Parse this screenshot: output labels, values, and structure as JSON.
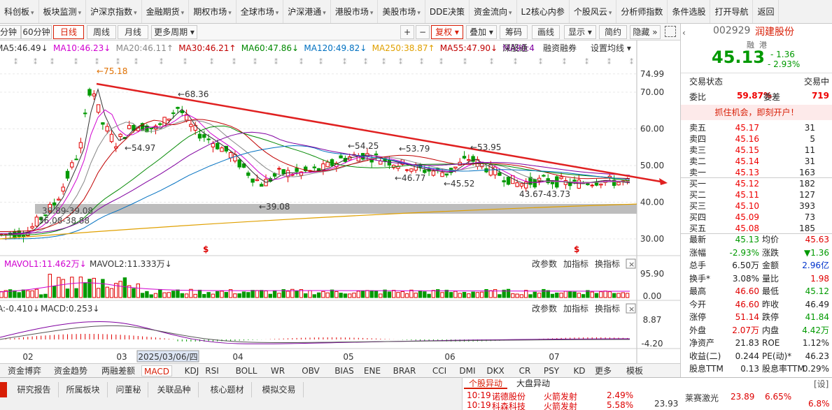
{
  "menu": [
    {
      "label": "科创板",
      "arrow": true
    },
    {
      "label": "板块监测",
      "arrow": true
    },
    {
      "label": "沪深京指数",
      "arrow": true
    },
    {
      "label": "金融期货",
      "arrow": true
    },
    {
      "label": "期权市场",
      "arrow": true
    },
    {
      "label": "全球市场",
      "arrow": true
    },
    {
      "label": "沪深港通",
      "arrow": true
    },
    {
      "label": "港股市场",
      "arrow": true
    },
    {
      "label": "美股市场",
      "arrow": true
    },
    {
      "label": "DDE决策",
      "arrow": false
    },
    {
      "label": "资金流向",
      "arrow": true
    },
    {
      "label": "L2核心内参",
      "arrow": false
    },
    {
      "label": "个股风云",
      "arrow": true
    },
    {
      "label": "分析师指数",
      "arrow": false
    },
    {
      "label": "条件选股",
      "arrow": false
    },
    {
      "label": "打开导航",
      "arrow": false
    },
    {
      "label": "返回",
      "arrow": false
    }
  ],
  "toolbar": {
    "periods": [
      "分钟",
      "60分钟",
      "日线",
      "周线",
      "月线"
    ],
    "active_period": "日线",
    "more_periods": "更多周期",
    "plus": "+",
    "minus": "−",
    "restore": "复权",
    "overlay": "叠加",
    "chips": "筹码",
    "draw": "画线",
    "display": "显示",
    "simple": "简约",
    "hide": "隐藏",
    "double_arrow": "»"
  },
  "ma_legend": [
    {
      "label": "MA5:46.49",
      "arrow": "↓",
      "color": "#333333"
    },
    {
      "label": "MA10:46.23",
      "arrow": "↓",
      "color": "#d000d0"
    },
    {
      "label": "MA20:46.11",
      "arrow": "↑",
      "color": "#888888"
    },
    {
      "label": "MA30:46.21",
      "arrow": "↑",
      "color": "#c00000"
    },
    {
      "label": "MA60:47.86",
      "arrow": "↓",
      "color": "#008800"
    },
    {
      "label": "MA120:49.82",
      "arrow": "↓",
      "color": "#0070c0"
    },
    {
      "label": "MA250:38.87",
      "arrow": "↑",
      "color": "#e0a000"
    },
    {
      "label": "MA55:47.90",
      "arrow": "↓",
      "color": "#c00000"
    },
    {
      "label": "MA90:4",
      "arrow": "",
      "color": "#8000a0"
    }
  ],
  "chart_buttons": {
    "shgt": "深股通",
    "margin": "融资融券",
    "set_ma": "设置均线"
  },
  "price_axis": [
    "74.99",
    "70.00",
    "60.00",
    "50.00",
    "40.00",
    "30.00"
  ],
  "annotations": {
    "high": "←75.18",
    "peak2": "←68.36",
    "low1": "←54.97",
    "mid1": "←54.25",
    "mid2": "←53.79",
    "mid3": "←53.95",
    "low2": "←46.77",
    "low3": "←45.52",
    "low4": "43.67-43.73",
    "low5": "←39.08",
    "band1": "38.89-39.08",
    "band2": "36.08-38.88",
    "s1": "$",
    "s2": "$"
  },
  "vol_panel": {
    "legend1": "MAVOL1:11.462万",
    "legend1_arrow": "↓",
    "legend2": "MAVOL2:11.333万",
    "legend2_arrow": "↓",
    "change": "改参数",
    "add": "加指标",
    "swap": "换指标",
    "close": "×",
    "axis_top": "95.90",
    "axis_bottom": "0.00"
  },
  "macd_panel": {
    "legend0": "A:-0.410",
    "legend0_arrow": "↓",
    "legend1": "MACD:0.253",
    "legend1_arrow": "↓",
    "change": "改参数",
    "add": "加指标",
    "swap": "换指标",
    "close": "×",
    "axis_top": "8.87",
    "axis_bottom": "-4.20"
  },
  "time_axis": [
    "02",
    "03",
    "2025/03/06/四",
    "04",
    "05",
    "06",
    "07"
  ],
  "ind_tabs": [
    "资金博弈",
    "资金趋势",
    "两融差额",
    "MACD",
    "KDJ",
    "RSI",
    "BOLL",
    "WR",
    "OBV",
    "BIAS",
    "ENE",
    "BRAR",
    "CCI",
    "DMI",
    "DKX",
    "CR",
    "PSY",
    "KD",
    "更多",
    "模板"
  ],
  "active_ind": "MACD",
  "bottom_tabs": [
    "研究报告",
    "所属板块",
    "问董秘",
    "关联品种",
    "核心题材",
    "模拟交易"
  ],
  "alerts": {
    "tab1": "个股异动",
    "tab2": "大盘异动",
    "settings": "[设]",
    "rows": [
      {
        "time": "10:19",
        "name": "诺德股份",
        "event": "火箭发射",
        "pct": "2.49%"
      },
      {
        "time": "10:19",
        "name": "科森科技",
        "event": "火箭发射",
        "pct": "5.58%"
      }
    ],
    "extra1": "23.93",
    "extra2": "莱赛激光",
    "extra3": "23.89",
    "extra4": "6.65%",
    "extra5": "6.8%"
  },
  "stock": {
    "code": "002929",
    "name": "润建股份",
    "tag1": "融",
    "tag2": "港",
    "price": "45.13",
    "change": "- 1.36",
    "change_pct": "- 2.93%",
    "status_label": "交易状态",
    "status_value": "交易中",
    "weibi_label": "委比",
    "weibi": "59.87%",
    "weicha_label": "委差",
    "weicha": "719",
    "promo": "抓住机会，即刻开户！",
    "sells": [
      {
        "label": "卖五",
        "price": "45.17",
        "vol": "31"
      },
      {
        "label": "卖四",
        "price": "45.16",
        "vol": "5"
      },
      {
        "label": "卖三",
        "price": "45.15",
        "vol": "11"
      },
      {
        "label": "卖二",
        "price": "45.14",
        "vol": "31"
      },
      {
        "label": "卖一",
        "price": "45.13",
        "vol": "163"
      }
    ],
    "buys": [
      {
        "label": "买一",
        "price": "45.12",
        "vol": "182"
      },
      {
        "label": "买二",
        "price": "45.11",
        "vol": "127"
      },
      {
        "label": "买三",
        "price": "45.10",
        "vol": "393"
      },
      {
        "label": "买四",
        "price": "45.09",
        "vol": "73"
      },
      {
        "label": "买五",
        "price": "45.08",
        "vol": "185"
      }
    ],
    "stats": [
      {
        "l1": "最新",
        "v1": "45.13",
        "c1": "green",
        "l2": "均价",
        "v2": "45.63",
        "c2": "red"
      },
      {
        "l1": "涨幅",
        "v1": "-2.93%",
        "c1": "green",
        "l2": "涨跌",
        "v2": "▼1.36",
        "c2": "green"
      },
      {
        "l1": "总手",
        "v1": "6.50万",
        "c1": "black",
        "l2": "金额",
        "v2": "2.96亿",
        "c2": "blue"
      },
      {
        "l1": "换手*",
        "v1": "3.08%",
        "c1": "black",
        "l2": "量比",
        "v2": "1.98",
        "c2": "red"
      },
      {
        "l1": "最高",
        "v1": "46.60",
        "c1": "red",
        "l2": "最低",
        "v2": "45.12",
        "c2": "green"
      },
      {
        "l1": "今开",
        "v1": "46.60",
        "c1": "red",
        "l2": "昨收",
        "v2": "46.49",
        "c2": "black"
      },
      {
        "l1": "涨停",
        "v1": "51.14",
        "c1": "red",
        "l2": "跌停",
        "v2": "41.84",
        "c2": "green"
      },
      {
        "l1": "外盘",
        "v1": "2.07万",
        "c1": "red",
        "l2": "内盘",
        "v2": "4.42万",
        "c2": "green"
      },
      {
        "l1": "净资产",
        "v1": "21.83",
        "c1": "black",
        "l2": "ROE",
        "v2": "1.12%",
        "c2": "black"
      },
      {
        "l1": "收益(二)",
        "v1": "0.244",
        "c1": "black",
        "l2": "PE(动)*",
        "v2": "46.23",
        "c2": "black"
      },
      {
        "l1": "股息TTM",
        "v1": "0.13",
        "c1": "black",
        "l2": "股息率TTM",
        "v2": "0.29%",
        "c2": "black"
      }
    ]
  },
  "colors": {
    "up": "#e00000",
    "down": "#009900",
    "accent": "#d81e06",
    "trend": "#e02020"
  }
}
